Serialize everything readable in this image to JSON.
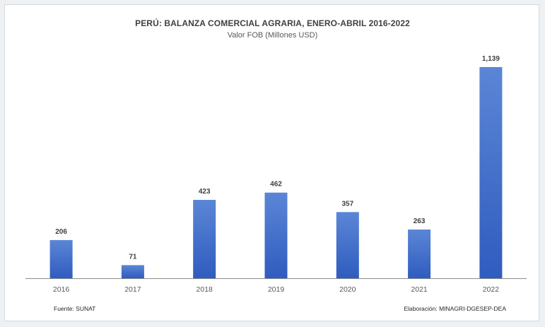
{
  "title": "PERÚ: BALANZA COMERCIAL AGRARIA, ENERO-ABRIL 2016-2022",
  "subtitle": "Valor FOB (Millones USD)",
  "source": "Fuente: SUNAT",
  "credit": "Elaboración: MINAGRI-DGESEP-DEA",
  "colors": {
    "bar_top": "#5b86d6",
    "bar_bottom": "#2f5cbf",
    "axis": "#8c8c8c",
    "label": "#404040",
    "tick": "#595959"
  },
  "chart_data": {
    "type": "bar",
    "title": "PERÚ: BALANZA COMERCIAL AGRARIA, ENERO-ABRIL 2016-2022",
    "subtitle": "Valor FOB (Millones USD)",
    "categories": [
      "2016",
      "2017",
      "2018",
      "2019",
      "2020",
      "2021",
      "2022"
    ],
    "values": [
      206,
      71,
      423,
      462,
      357,
      263,
      1139
    ],
    "value_labels": [
      "206",
      "71",
      "423",
      "462",
      "357",
      "263",
      "1,139"
    ],
    "xlabel": "",
    "ylabel": "",
    "ylim": [
      0,
      1139
    ],
    "grid": false,
    "legend": "none"
  }
}
